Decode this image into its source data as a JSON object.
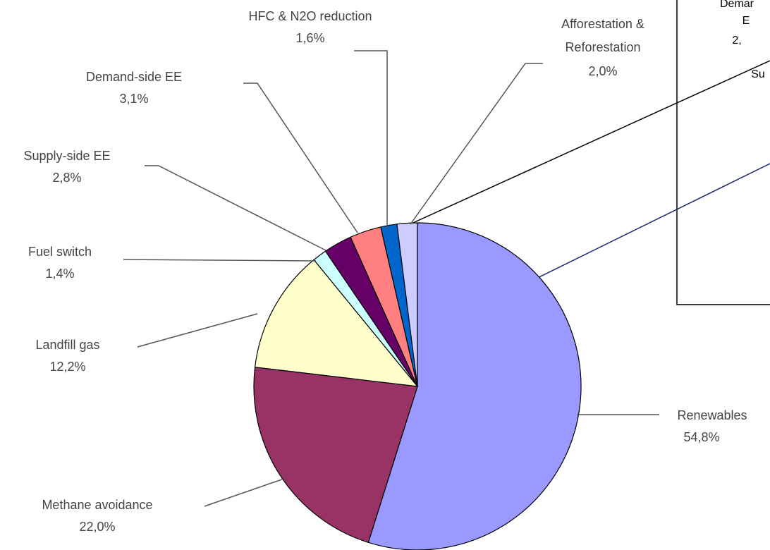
{
  "chart_data": {
    "type": "pie",
    "categories": [
      "Renewables",
      "Methane avoidance",
      "Landfill gas",
      "Fuel switch",
      "Supply-side EE",
      "Demand-side EE",
      "HFC & N2O reduction",
      "Afforestation & Reforestation"
    ],
    "values": [
      54.8,
      22.0,
      12.2,
      1.4,
      2.8,
      3.1,
      1.6,
      2.0
    ],
    "value_labels": [
      "54,8%",
      "22,0%",
      "12,2%",
      "1,4%",
      "2,8%",
      "3,1%",
      "1,6%",
      "2,0%"
    ],
    "colors": [
      "#9999ff",
      "#993366",
      "#ffffcc",
      "#ccffff",
      "#660066",
      "#ff8080",
      "#0066cc",
      "#ccccff"
    ],
    "inset_texts": [
      "Demar",
      "E",
      "2,",
      "Su"
    ]
  }
}
